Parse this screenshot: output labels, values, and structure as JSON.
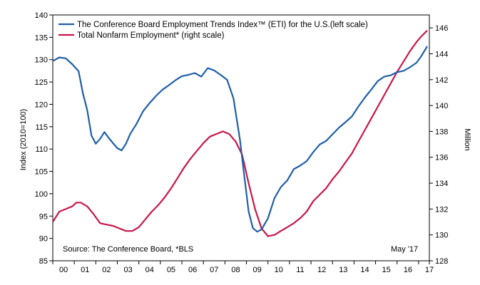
{
  "chart_data": {
    "type": "line",
    "xlabel": "",
    "ylabel_left": "Index (2010=100)",
    "ylabel_right": "Million",
    "ylim_left": [
      85,
      140
    ],
    "ylim_right": [
      128,
      147
    ],
    "yticks_left": [
      "85",
      "90",
      "95",
      "100",
      "105",
      "110",
      "115",
      "120",
      "125",
      "130",
      "135",
      "140"
    ],
    "yticks_right": [
      "128",
      "130",
      "132",
      "134",
      "136",
      "138",
      "140",
      "142",
      "144",
      "146"
    ],
    "xticks": [
      "00",
      "01",
      "02",
      "03",
      "04",
      "05",
      "06",
      "07",
      "08",
      "09",
      "10",
      "11",
      "12",
      "13",
      "14",
      "15",
      "16",
      "17"
    ],
    "grid": false,
    "legend_position": "top-left",
    "source_note": "Source: The Conference Board, *BLS",
    "date_note": "May '17",
    "colors": {
      "eti": "#1f5fa8",
      "nonfarm": "#c8174a"
    },
    "series": [
      {
        "name": "The Conference Board Employment Trends Index™ (ETI) for the U.S.(left scale)",
        "axis": "left",
        "x": [
          2000.0,
          2000.3,
          2000.6,
          2000.9,
          2001.2,
          2001.4,
          2001.6,
          2001.8,
          2002.0,
          2002.2,
          2002.4,
          2002.6,
          2002.8,
          2003.0,
          2003.2,
          2003.4,
          2003.6,
          2003.9,
          2004.2,
          2004.5,
          2004.8,
          2005.1,
          2005.4,
          2005.7,
          2006.0,
          2006.3,
          2006.6,
          2006.9,
          2007.2,
          2007.5,
          2007.8,
          2008.1,
          2008.4,
          2008.7,
          2008.9,
          2009.1,
          2009.3,
          2009.5,
          2009.7,
          2010.0,
          2010.3,
          2010.6,
          2010.9,
          2011.2,
          2011.5,
          2011.8,
          2012.1,
          2012.4,
          2012.7,
          2013.0,
          2013.3,
          2013.6,
          2013.9,
          2014.2,
          2014.5,
          2014.8,
          2015.1,
          2015.4,
          2015.7,
          2016.0,
          2016.3,
          2016.6,
          2016.9,
          2017.1,
          2017.4
        ],
        "y": [
          129.7,
          130.5,
          130.3,
          129.0,
          127.4,
          122.5,
          118.7,
          113.0,
          111.2,
          112.3,
          113.8,
          112.5,
          111.3,
          110.2,
          109.7,
          111.2,
          113.4,
          115.7,
          118.5,
          120.3,
          121.9,
          123.3,
          124.3,
          125.4,
          126.3,
          126.6,
          127.0,
          126.2,
          128.1,
          127.6,
          126.6,
          125.5,
          121.3,
          112.0,
          104.0,
          96.0,
          92.3,
          91.5,
          92.0,
          94.5,
          99.0,
          101.5,
          103.0,
          105.5,
          106.3,
          107.3,
          109.3,
          111.0,
          111.8,
          113.3,
          114.8,
          116.0,
          117.3,
          119.5,
          121.5,
          123.3,
          125.2,
          126.2,
          126.5,
          127.2,
          127.5,
          128.3,
          129.3,
          130.6,
          133.0
        ]
      },
      {
        "name": "Total Nonfarm Employment* (right scale)",
        "axis": "right",
        "x": [
          2000.0,
          2000.3,
          2000.6,
          2000.9,
          2001.1,
          2001.3,
          2001.6,
          2001.9,
          2002.2,
          2002.5,
          2002.8,
          2003.1,
          2003.4,
          2003.7,
          2004.0,
          2004.3,
          2004.6,
          2004.9,
          2005.2,
          2005.5,
          2005.8,
          2006.1,
          2006.4,
          2006.7,
          2007.0,
          2007.3,
          2007.6,
          2007.9,
          2008.2,
          2008.5,
          2008.8,
          2009.1,
          2009.4,
          2009.7,
          2010.0,
          2010.3,
          2010.6,
          2010.9,
          2011.2,
          2011.5,
          2011.8,
          2012.1,
          2012.4,
          2012.7,
          2013.0,
          2013.3,
          2013.6,
          2013.9,
          2014.2,
          2014.5,
          2014.8,
          2015.1,
          2015.4,
          2015.7,
          2016.0,
          2016.3,
          2016.6,
          2016.9,
          2017.1,
          2017.4
        ],
        "y": [
          131.0,
          131.8,
          132.0,
          132.2,
          132.5,
          132.5,
          132.2,
          131.6,
          130.9,
          130.8,
          130.7,
          130.5,
          130.3,
          130.3,
          130.6,
          131.2,
          131.8,
          132.3,
          132.9,
          133.6,
          134.4,
          135.2,
          135.9,
          136.5,
          137.1,
          137.6,
          137.8,
          138.0,
          137.8,
          137.2,
          136.2,
          134.0,
          132.0,
          130.5,
          129.9,
          130.0,
          130.3,
          130.6,
          130.9,
          131.3,
          131.8,
          132.6,
          133.1,
          133.6,
          134.3,
          134.9,
          135.6,
          136.3,
          137.2,
          138.1,
          139.0,
          139.9,
          140.8,
          141.7,
          142.6,
          143.4,
          144.2,
          144.9,
          145.3,
          145.8
        ]
      }
    ]
  }
}
